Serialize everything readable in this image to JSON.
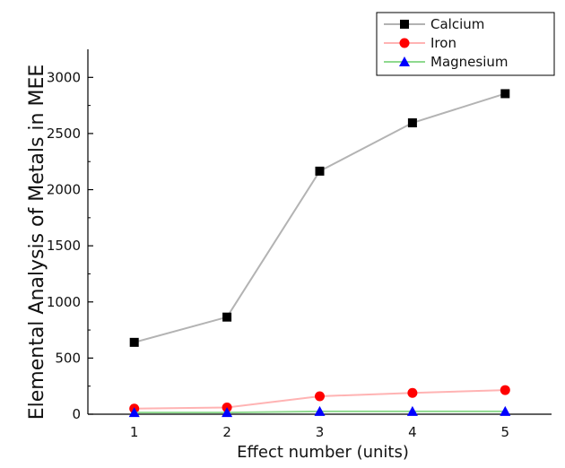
{
  "chart_data": {
    "type": "line",
    "xlabel": "Effect number (units)",
    "ylabel": "Elemental Analysis of Metals in MEE",
    "x": [
      1,
      2,
      3,
      4,
      5
    ],
    "xlim": [
      0.5,
      5.5
    ],
    "ylim": [
      0,
      3250
    ],
    "xticks": [
      "1",
      "2",
      "3",
      "4",
      "5"
    ],
    "yticks": [
      0,
      500,
      1000,
      1500,
      2000,
      2500,
      3000
    ],
    "grid": false,
    "legend_position": "top-right",
    "series": [
      {
        "name": "Calcium",
        "values": [
          640,
          865,
          2165,
          2595,
          2855
        ],
        "marker": "square",
        "marker_color": "#000000",
        "line_color": "#b3b3b3"
      },
      {
        "name": "Iron",
        "values": [
          50,
          60,
          160,
          190,
          215
        ],
        "marker": "circle",
        "marker_color": "#ff0000",
        "line_color": "#ffb3b3"
      },
      {
        "name": "Magnesium",
        "values": [
          15,
          15,
          25,
          25,
          25
        ],
        "marker": "triangle",
        "marker_color": "#0000ff",
        "line_color": "#8fd98f"
      }
    ]
  }
}
